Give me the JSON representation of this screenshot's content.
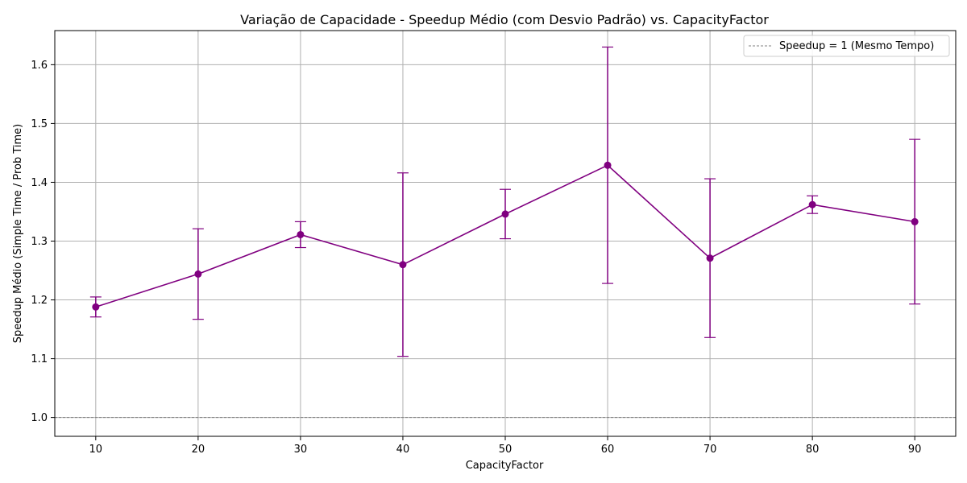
{
  "chart_data": {
    "type": "line",
    "title": "Variação de Capacidade - Speedup Médio (com Desvio Padrão) vs. CapacityFactor",
    "xlabel": "CapacityFactor",
    "ylabel": "Speedup Médio (Simple Time / Prob Time)",
    "xlim": [
      6,
      94
    ],
    "ylim": [
      0.968,
      1.658
    ],
    "xticks": [
      10,
      20,
      30,
      40,
      50,
      60,
      70,
      80,
      90
    ],
    "yticks": [
      1.0,
      1.1,
      1.2,
      1.3,
      1.4,
      1.5,
      1.6
    ],
    "grid": true,
    "legend_position": "top-right",
    "series": [
      {
        "color": "#800080",
        "x": [
          10,
          20,
          30,
          40,
          50,
          60,
          70,
          80,
          90
        ],
        "y": [
          1.188,
          1.244,
          1.311,
          1.26,
          1.346,
          1.429,
          1.271,
          1.362,
          1.333
        ],
        "error": [
          0.017,
          0.077,
          0.022,
          0.156,
          0.042,
          0.201,
          0.135,
          0.015,
          0.14
        ]
      }
    ],
    "reference_line": {
      "name": "Speedup = 1 (Mesmo Tempo)",
      "y": 1.0,
      "color": "#808080",
      "style": "dashed"
    }
  }
}
